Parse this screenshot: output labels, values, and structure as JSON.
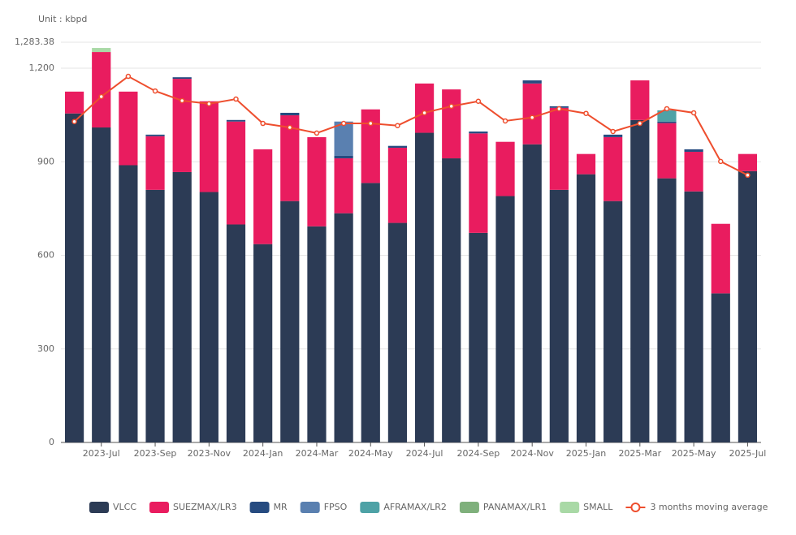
{
  "chart_data": {
    "type": "bar",
    "stacked": true,
    "unit_label": "Unit : kbpd",
    "categories": [
      null,
      "2023-Jul",
      null,
      "2023-Sep",
      null,
      "2023-Nov",
      null,
      "2024-Jan",
      null,
      "2024-Mar",
      null,
      "2024-May",
      null,
      "2024-Jul",
      null,
      "2024-Sep",
      null,
      "2024-Nov",
      null,
      "2025-Jan",
      null,
      "2025-Mar",
      null,
      "2025-May",
      null,
      "2025-Jul"
    ],
    "series": [
      {
        "name": "VLCC",
        "color": "#2c3b55",
        "values": [
          1055,
          1010,
          889,
          810,
          867,
          803,
          699,
          636,
          774,
          693,
          735,
          832,
          704,
          993,
          911,
          672,
          790,
          956,
          810,
          860,
          774,
          1034,
          847,
          805,
          478,
          870
        ]
      },
      {
        "name": "SUEZMAX/LR3",
        "color": "#e91c5f",
        "values": [
          70,
          242,
          236,
          172,
          299,
          291,
          330,
          304,
          275,
          286,
          176,
          236,
          241,
          158,
          221,
          319,
          174,
          195,
          263,
          65,
          205,
          127,
          177,
          127,
          223,
          55
        ]
      },
      {
        "name": "MR",
        "color": "#264b80",
        "values": [
          0,
          0,
          0,
          5,
          5,
          0,
          5,
          0,
          8,
          0,
          8,
          0,
          6,
          0,
          0,
          6,
          0,
          10,
          5,
          0,
          8,
          0,
          5,
          8,
          0,
          0
        ]
      },
      {
        "name": "FPSO",
        "color": "#5a80b0",
        "values": [
          0,
          0,
          0,
          0,
          0,
          0,
          0,
          0,
          0,
          0,
          110,
          0,
          0,
          0,
          0,
          0,
          0,
          0,
          0,
          0,
          0,
          0,
          0,
          0,
          0,
          0
        ]
      },
      {
        "name": "AFRAMAX/LR2",
        "color": "#4ea2a6",
        "values": [
          0,
          0,
          0,
          0,
          0,
          0,
          0,
          0,
          0,
          0,
          0,
          0,
          0,
          0,
          0,
          0,
          0,
          0,
          0,
          0,
          0,
          0,
          36,
          0,
          0,
          0
        ]
      },
      {
        "name": "PANAMAX/LR1",
        "color": "#7fb07c",
        "values": [
          0,
          0,
          0,
          0,
          0,
          0,
          0,
          0,
          0,
          0,
          0,
          0,
          0,
          0,
          0,
          0,
          0,
          0,
          0,
          0,
          0,
          0,
          0,
          0,
          0,
          0
        ]
      },
      {
        "name": "SMALL",
        "color": "#a9d9a6",
        "values": [
          0,
          13,
          0,
          0,
          0,
          0,
          0,
          0,
          0,
          0,
          0,
          0,
          0,
          0,
          0,
          0,
          0,
          0,
          0,
          0,
          0,
          0,
          0,
          0,
          0,
          0
        ]
      },
      {
        "name": "3 months moving average",
        "color": "#ee4e2e",
        "type": "line",
        "values": [
          1029,
          1109,
          1174,
          1127,
          1096,
          1086,
          1101,
          1023,
          1010,
          992,
          1023,
          1023,
          1016,
          1057,
          1078,
          1094,
          1031,
          1042,
          1070,
          1055,
          997,
          1023,
          1070,
          1057,
          901,
          857
        ]
      }
    ],
    "ylim": [
      0,
      1283.38
    ],
    "yticks": [
      0,
      300,
      600,
      900,
      {
        "value": 1200,
        "label": "1,200"
      },
      {
        "value": 1283.38,
        "label": "1,283.38"
      }
    ],
    "grid": true
  }
}
